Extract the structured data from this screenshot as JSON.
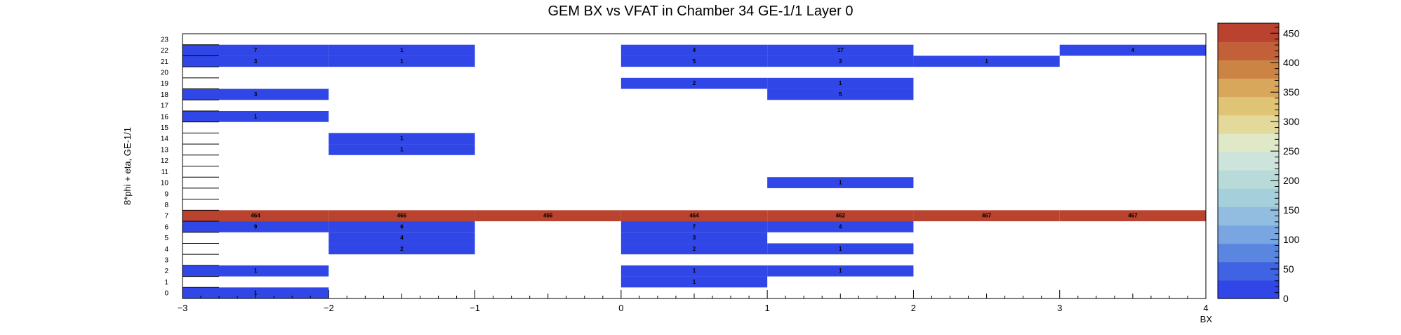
{
  "chart_data": {
    "type": "heatmap",
    "title": "GEM BX vs VFAT in Chamber 34 GE-1/1 Layer 0",
    "xlabel": "BX",
    "ylabel": "8*phi + eta, GE-1/1",
    "xlim": [
      -3,
      4
    ],
    "ylim": [
      0,
      24
    ],
    "x_ticks": [
      -3,
      -2,
      -1,
      0,
      1,
      2,
      3,
      4
    ],
    "x_tick_labels": [
      "−3",
      "−2",
      "−1",
      "0",
      "1",
      "2",
      "3",
      "4"
    ],
    "y_tick_labels": [
      "0",
      "1",
      "2",
      "3",
      "4",
      "5",
      "6",
      "7",
      "8",
      "9",
      "10",
      "11",
      "12",
      "13",
      "14",
      "15",
      "16",
      "17",
      "18",
      "19",
      "20",
      "21",
      "22",
      "23"
    ],
    "x_bin_edges": [
      -3,
      -2,
      -1,
      0,
      1,
      2,
      3,
      4
    ],
    "zlim": [
      0,
      467
    ],
    "z_ticks": [
      0,
      50,
      100,
      150,
      200,
      250,
      300,
      350,
      400,
      450
    ],
    "z_tick_labels": [
      "0",
      "50",
      "100",
      "150",
      "200",
      "250",
      "300",
      "350",
      "400",
      "450"
    ],
    "cells": [
      {
        "bx": -3,
        "y": 22,
        "value": 7
      },
      {
        "bx": -2,
        "y": 22,
        "value": 1
      },
      {
        "bx": 0,
        "y": 22,
        "value": 4
      },
      {
        "bx": 1,
        "y": 22,
        "value": 17
      },
      {
        "bx": 3,
        "y": 22,
        "value": 4
      },
      {
        "bx": -3,
        "y": 21,
        "value": 3
      },
      {
        "bx": -2,
        "y": 21,
        "value": 1
      },
      {
        "bx": 0,
        "y": 21,
        "value": 5
      },
      {
        "bx": 1,
        "y": 21,
        "value": 3
      },
      {
        "bx": 2,
        "y": 21,
        "value": 1
      },
      {
        "bx": 0,
        "y": 19,
        "value": 2
      },
      {
        "bx": 1,
        "y": 19,
        "value": 1
      },
      {
        "bx": -3,
        "y": 18,
        "value": 3
      },
      {
        "bx": 1,
        "y": 18,
        "value": 5
      },
      {
        "bx": -3,
        "y": 16,
        "value": 1
      },
      {
        "bx": -2,
        "y": 14,
        "value": 1
      },
      {
        "bx": -2,
        "y": 13,
        "value": 1
      },
      {
        "bx": 1,
        "y": 10,
        "value": 1
      },
      {
        "bx": -3,
        "y": 7,
        "value": 464
      },
      {
        "bx": -2,
        "y": 7,
        "value": 466
      },
      {
        "bx": -1,
        "y": 7,
        "value": 466
      },
      {
        "bx": 0,
        "y": 7,
        "value": 464
      },
      {
        "bx": 1,
        "y": 7,
        "value": 462
      },
      {
        "bx": 2,
        "y": 7,
        "value": 467
      },
      {
        "bx": 3,
        "y": 7,
        "value": 467
      },
      {
        "bx": -3,
        "y": 6,
        "value": 9
      },
      {
        "bx": -2,
        "y": 6,
        "value": 6
      },
      {
        "bx": 0,
        "y": 6,
        "value": 7
      },
      {
        "bx": 1,
        "y": 6,
        "value": 4
      },
      {
        "bx": -2,
        "y": 5,
        "value": 4
      },
      {
        "bx": 0,
        "y": 5,
        "value": 3
      },
      {
        "bx": -2,
        "y": 4,
        "value": 2
      },
      {
        "bx": 0,
        "y": 4,
        "value": 2
      },
      {
        "bx": 1,
        "y": 4,
        "value": 1
      },
      {
        "bx": -3,
        "y": 2,
        "value": 1
      },
      {
        "bx": 0,
        "y": 2,
        "value": 1
      },
      {
        "bx": 1,
        "y": 2,
        "value": 1
      },
      {
        "bx": 0,
        "y": 1,
        "value": 1
      },
      {
        "bx": -3,
        "y": 0,
        "value": 1
      }
    ],
    "palette": [
      "#3046e6",
      "#3f63e2",
      "#5a86df",
      "#79a6e0",
      "#92bde0",
      "#a6cfdc",
      "#b8dad8",
      "#cde4dc",
      "#dfe8c7",
      "#e2d99a",
      "#e0c476",
      "#d9a75b",
      "#cc8445",
      "#c2603a",
      "#b9432f"
    ],
    "grid": false,
    "legend": "colorbar-right"
  }
}
